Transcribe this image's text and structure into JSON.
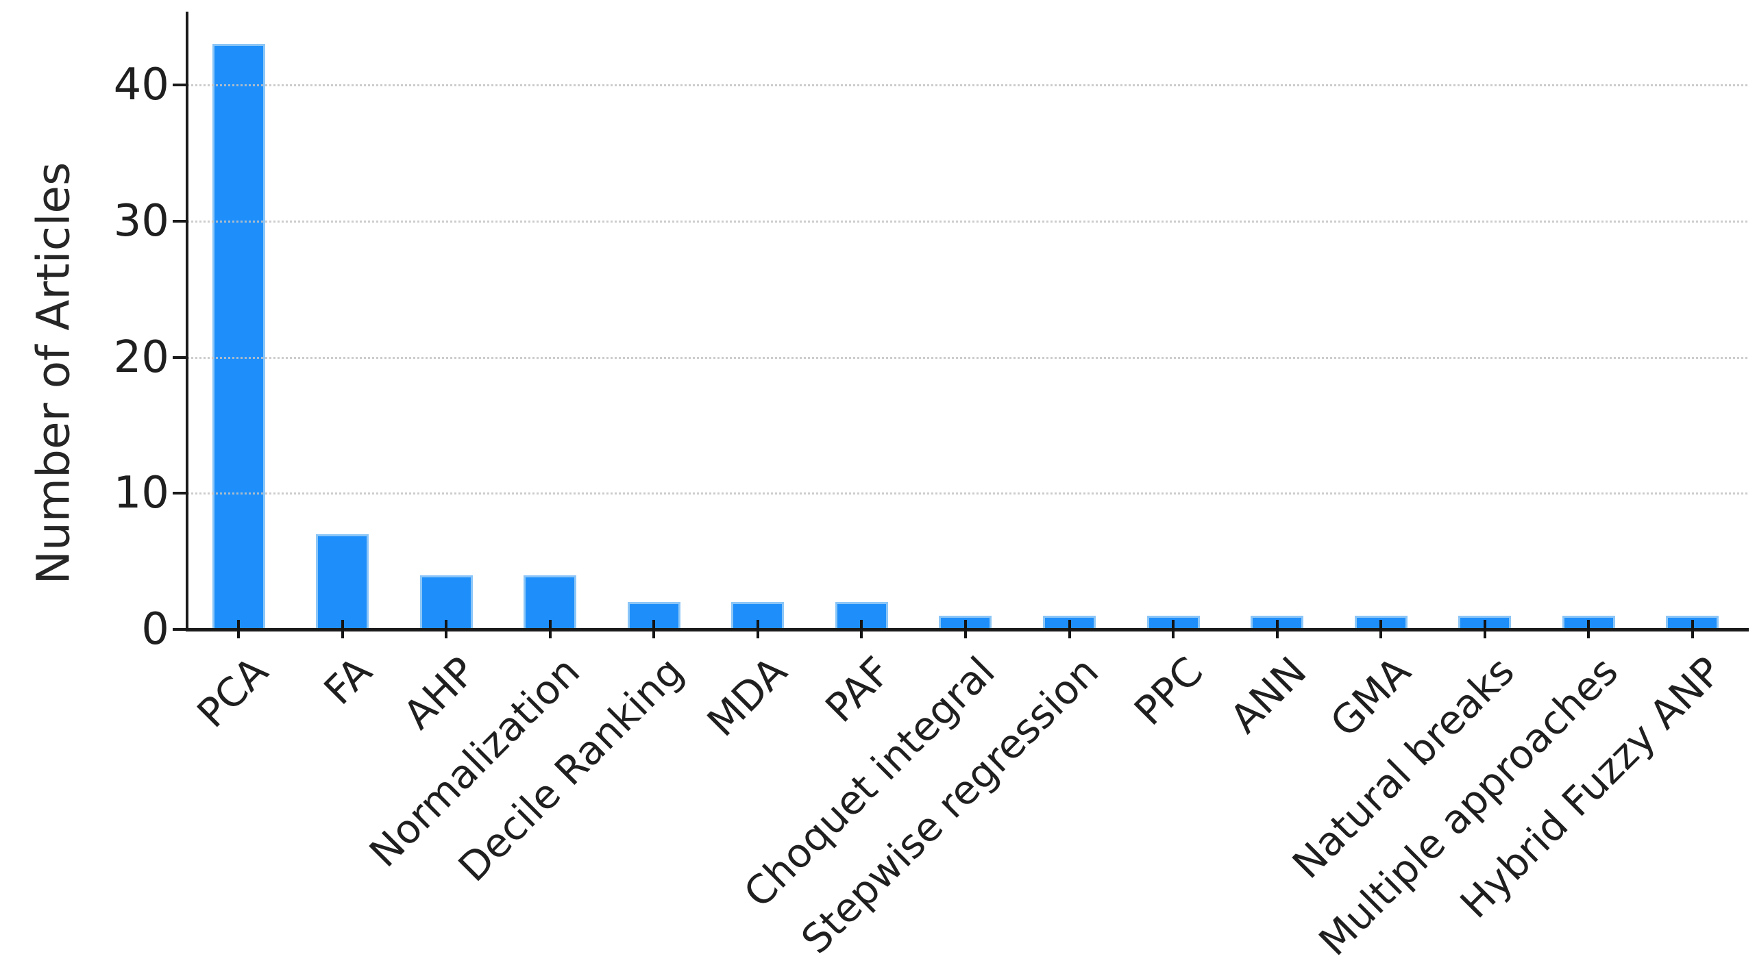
{
  "figure": {
    "background_color": "#ffffff",
    "text_color": "#1f1f1f",
    "axis_color": "#1a1a1a"
  },
  "chart_data": {
    "type": "bar",
    "title": "",
    "xlabel": "",
    "ylabel": "Number of Articles",
    "categories": [
      "PCA",
      "FA",
      "AHP",
      "Normalization",
      "Decile Ranking",
      "MDA",
      "PAF",
      "Choquet integral",
      "Stepwise regression",
      "PPC",
      "ANN",
      "GMA",
      "Natural breaks",
      "Multiple approaches",
      "Hybrid Fuzzy ANP"
    ],
    "values": [
      43,
      7,
      4,
      4,
      2,
      2,
      2,
      1,
      1,
      1,
      1,
      1,
      1,
      1,
      1
    ],
    "yticks": [
      0,
      10,
      20,
      30,
      40
    ],
    "ylim": [
      0,
      45.4
    ],
    "grid": "horizontal-dotted",
    "gridline_color": "#c9c9c9",
    "bar_color": "#1E8FFA",
    "bar_edge_color": "#8CC6F7",
    "x_tick_rotation_deg": 45
  }
}
